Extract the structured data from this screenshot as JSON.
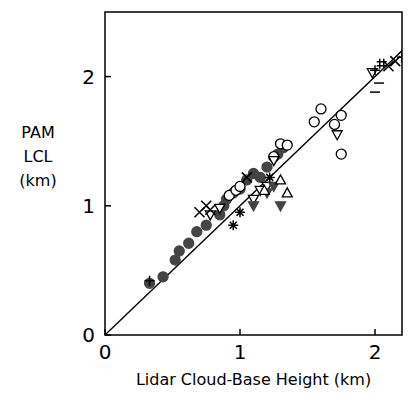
{
  "chart_data": {
    "type": "scatter",
    "x_label": "Lidar Cloud-Base Height (km)",
    "y_label": "PAM LCL (km)",
    "xlim": [
      0,
      2.2
    ],
    "ylim": [
      0,
      2.5
    ],
    "xticks": [
      0,
      1,
      2
    ],
    "yticks": [
      0,
      1,
      2
    ],
    "grid": false,
    "color": "#000000",
    "reference_line": {
      "x": [
        0,
        2.5
      ],
      "values": [
        0,
        2.5
      ]
    },
    "series": [
      {
        "marker": "circle-filled",
        "color": "#444444",
        "x": [
          0.33,
          0.43,
          0.52,
          0.55,
          0.62,
          0.68,
          0.75,
          0.85,
          0.88,
          0.9,
          0.95,
          1.0,
          1.05,
          1.1,
          1.15,
          1.2,
          1.28,
          1.32
        ],
        "values": [
          0.4,
          0.45,
          0.58,
          0.65,
          0.71,
          0.8,
          0.85,
          0.93,
          1.0,
          1.05,
          1.1,
          1.13,
          1.2,
          1.25,
          1.22,
          1.3,
          1.4,
          1.45
        ]
      },
      {
        "marker": "circle-open",
        "color": "#000000",
        "x": [
          0.92,
          0.97,
          1.0,
          1.25,
          1.3,
          1.35,
          1.55,
          1.6,
          1.7,
          1.75,
          1.75
        ],
        "values": [
          1.08,
          1.12,
          1.15,
          1.38,
          1.48,
          1.47,
          1.65,
          1.75,
          1.63,
          1.7,
          1.4
        ]
      },
      {
        "marker": "triangle-down-open",
        "color": "#000000",
        "x": [
          0.78,
          0.85,
          1.1,
          1.15,
          1.2,
          1.25,
          1.72,
          1.98
        ],
        "values": [
          0.93,
          0.98,
          1.05,
          1.12,
          1.15,
          1.35,
          1.55,
          2.03
        ]
      },
      {
        "marker": "triangle-down-filled",
        "color": "#444444",
        "x": [
          1.1,
          1.2,
          1.25,
          1.3
        ],
        "values": [
          1.0,
          1.1,
          1.15,
          1.0
        ]
      },
      {
        "marker": "triangle-up-open",
        "color": "#000000",
        "x": [
          1.18,
          1.3,
          1.35
        ],
        "values": [
          1.12,
          1.2,
          1.1
        ]
      },
      {
        "marker": "x",
        "color": "#000000",
        "x": [
          0.7,
          0.75,
          0.78,
          1.05,
          2.1,
          2.15
        ],
        "values": [
          0.95,
          1.0,
          0.97,
          1.22,
          2.08,
          2.12
        ]
      },
      {
        "marker": "asterisk",
        "color": "#000000",
        "x": [
          0.95,
          1.0,
          1.22
        ],
        "values": [
          0.85,
          0.95,
          1.22
        ]
      },
      {
        "marker": "plus",
        "color": "#000000",
        "x": [
          0.33,
          2.0,
          2.2
        ],
        "values": [
          0.42,
          2.05,
          2.15
        ]
      },
      {
        "marker": "hash",
        "color": "#000000",
        "x": [
          2.05
        ],
        "values": [
          2.1
        ]
      },
      {
        "marker": "dash",
        "color": "#000000",
        "x": [
          2.0,
          2.03
        ],
        "values": [
          1.88,
          1.95
        ]
      }
    ]
  }
}
